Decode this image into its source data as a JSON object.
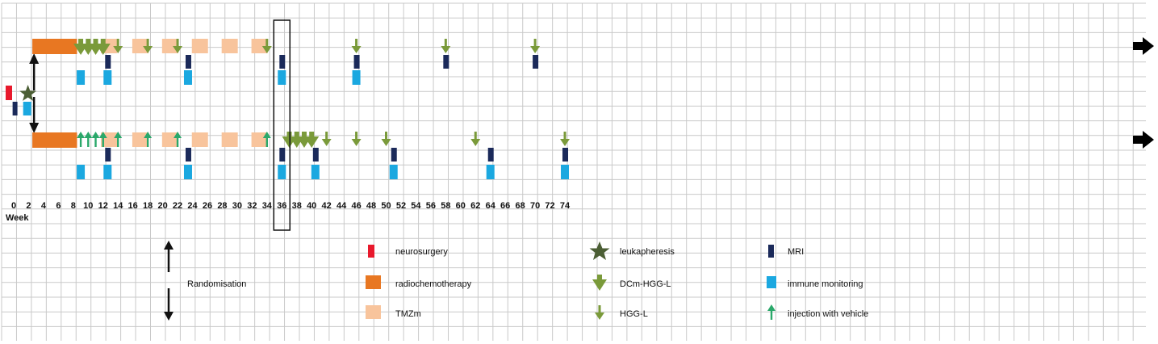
{
  "axis": {
    "unit_label": "Week",
    "ticks": [
      0,
      2,
      4,
      6,
      8,
      10,
      12,
      14,
      16,
      18,
      20,
      22,
      24,
      26,
      28,
      30,
      32,
      34,
      36,
      38,
      40,
      42,
      44,
      46,
      48,
      50,
      52,
      54,
      56,
      58,
      60,
      62,
      64,
      66,
      68,
      70,
      72,
      74
    ],
    "highlight_week": 36
  },
  "colors": {
    "neurosurgery": "#e8192c",
    "radiochemotherapy": "#e87722",
    "tmz": "#f8c49c",
    "leukapheresis": "#4b5e34",
    "dc_arrow": "#7a9a3a",
    "vehicle_arrow": "#2aa86a",
    "mri": "#1b2a5a",
    "immune": "#1ba8e0",
    "grid": "#c9c9c9"
  },
  "baseline": {
    "neurosurgery_week": 0,
    "mri_week": 0.5,
    "leukapheresis_week": 1.8,
    "immune_week": 1.7,
    "randomisation_week": 2.4
  },
  "arms": [
    {
      "id": "dc-arm",
      "radiochemo": [
        2.5,
        8.5
      ],
      "tmz": [
        12.8,
        17,
        21,
        25,
        29,
        33
      ],
      "induction_arrows": [
        9,
        10,
        11,
        12
      ],
      "induction_type": "dc",
      "single_arrows": [
        14,
        18,
        22,
        34,
        46,
        58,
        70
      ],
      "single_type": "hgg",
      "mri": [
        12.6,
        23.4,
        36,
        46,
        58,
        70
      ],
      "immune": [
        9,
        12.6,
        23.4,
        36,
        46
      ]
    },
    {
      "id": "placebo-arm",
      "radiochemo": [
        2.5,
        8.5
      ],
      "tmz": [
        12.8,
        17,
        21,
        25,
        29,
        33
      ],
      "induction_arrows": [
        9,
        10,
        11,
        12
      ],
      "induction_type": "vehicle",
      "single_arrows": [
        14,
        18,
        22,
        34
      ],
      "single_type": "vehicle",
      "crossover_arrows": [
        37,
        38,
        39,
        40
      ],
      "crossover_singles": [
        42,
        46,
        50,
        62,
        74
      ],
      "mri": [
        12.6,
        23.4,
        36,
        40.5,
        51,
        64,
        74
      ],
      "immune": [
        9,
        12.6,
        23.4,
        36,
        40.5,
        51,
        64,
        74
      ]
    }
  ],
  "legend": {
    "randomisation": "Randomisation",
    "neurosurgery": "neurosurgery",
    "radiochemotherapy": "radiochemotherapy",
    "tmz": "TMZm",
    "leukapheresis": "leukapheresis",
    "dc_hgg": "DCm-HGG-L",
    "hgg": "HGG-L",
    "mri": "MRI",
    "immune": "immune monitoring",
    "vehicle": "injection with vehicle"
  }
}
